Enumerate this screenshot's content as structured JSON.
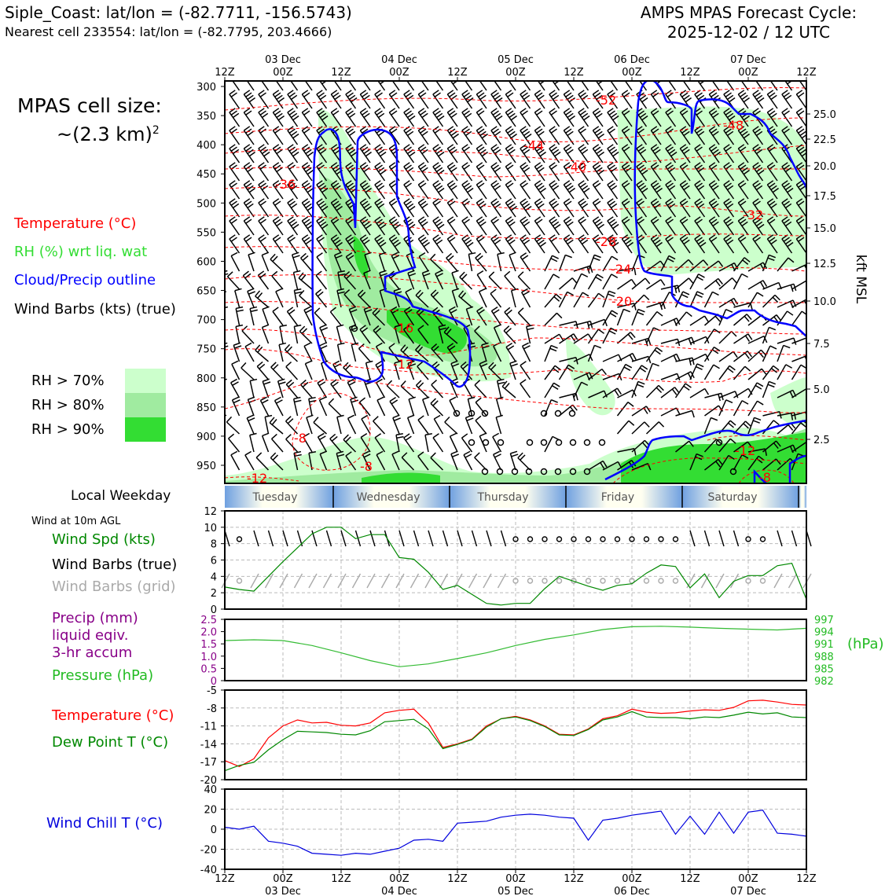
{
  "header": {
    "title_left": "Siple_Coast: lat/lon = (-82.7711, -156.5743)",
    "subtitle_left": "Nearest cell 233554: lat/lon = (-82.7795, 203.4666)",
    "title_right_1": "AMPS MPAS Forecast Cycle:",
    "title_right_2": "2025-12-02 / 12 UTC"
  },
  "cell_size": {
    "line1": "MPAS cell size:",
    "line2": "~(2.3 km)",
    "sup": "2"
  },
  "legend": {
    "temperature": "Temperature (°C)",
    "rh": "RH (%) wrt liq. wat",
    "cloud": "Cloud/Precip outline",
    "wind": "Wind Barbs (kts) (true)",
    "rh70": "RH > 70%",
    "rh80": "RH > 80%",
    "rh90": "RH > 90%",
    "colors": {
      "rh70": "#ccffcc",
      "rh80": "#a0eba0",
      "rh90": "#33dd33",
      "temp": "#ff0000",
      "rh_text": "#33dd33",
      "cloud": "#0000ff"
    }
  },
  "time_axis": {
    "ticks": [
      "12Z",
      "00Z",
      "12Z",
      "00Z",
      "12Z",
      "00Z",
      "12Z",
      "00Z",
      "12Z",
      "00Z",
      "12Z"
    ],
    "dates": [
      "03 Dec",
      "04 Dec",
      "05 Dec",
      "06 Dec",
      "07 Dec"
    ]
  },
  "pressure_axis": {
    "labels": [
      "300",
      "350",
      "400",
      "450",
      "500",
      "550",
      "600",
      "650",
      "700",
      "750",
      "800",
      "850",
      "900",
      "950"
    ]
  },
  "kft_axis": {
    "title": "kft MSL",
    "labels": [
      "25.0",
      "22.5",
      "20.0",
      "17.5",
      "15.0",
      "12.5",
      "10.0",
      "7.5",
      "5.0",
      "2.5"
    ]
  },
  "temp_contours": [
    "-52",
    "-48",
    "-44",
    "-40",
    "-36",
    "-32",
    "-28",
    "-24",
    "-20",
    "-16",
    "-12",
    "-8",
    "-8",
    "-12",
    "-12",
    "-8"
  ],
  "weekday": {
    "label": "Local Weekday",
    "days": [
      "Tuesday",
      "Wednesday",
      "Thursday",
      "Friday",
      "Saturday"
    ]
  },
  "panels": {
    "wind_note": "Wind at 10m AGL",
    "wind_spd": "Wind Spd (kts)",
    "wind_barbs_true": "Wind Barbs (true)",
    "wind_barbs_grid": "Wind Barbs (grid)",
    "precip_1": "Precip (mm)",
    "precip_2": "liquid eqiv.",
    "precip_3": "3-hr accum",
    "pressure": "Pressure (hPa)",
    "pressure_unit": "(hPa)",
    "temperature": "Temperature (°C)",
    "dewpoint": "Dew Point T (°C)",
    "windchill": "Wind Chill T (°C)"
  },
  "chart_data": [
    {
      "type": "line",
      "title": "Wind Spd (kts)",
      "x_hours": [
        0,
        3,
        6,
        9,
        12,
        15,
        18,
        21,
        24,
        27,
        30,
        33,
        36,
        39,
        42,
        45,
        48,
        51,
        54,
        57,
        60,
        63,
        66,
        69,
        72,
        75,
        78,
        81,
        84,
        87,
        90,
        93,
        96,
        99,
        102,
        105,
        108,
        111,
        114,
        117,
        120
      ],
      "y_ticks": [
        "0",
        "2",
        "4",
        "6",
        "8",
        "10",
        "12"
      ],
      "ylim": [
        0,
        12
      ],
      "values": [
        2.7,
        2.4,
        2.2,
        4.0,
        5.8,
        7.5,
        9.2,
        10.0,
        10.0,
        8.6,
        9.1,
        9.1,
        6.3,
        6.1,
        4.5,
        2.4,
        2.9,
        1.8,
        0.7,
        0.5,
        0.7,
        0.7,
        2.5,
        4.0,
        3.4,
        2.8,
        2.3,
        2.9,
        3.1,
        4.4,
        5.4,
        5.2,
        2.6,
        4.3,
        1.4,
        3.4,
        4.1,
        4.1,
        5.3,
        5.6,
        1.2
      ],
      "color": "#008800"
    },
    {
      "type": "line",
      "title": "Pressure (hPa)",
      "x_hours": [
        0,
        6,
        12,
        18,
        24,
        30,
        36,
        42,
        48,
        54,
        60,
        66,
        72,
        78,
        84,
        90,
        96,
        102,
        108,
        114,
        120
      ],
      "y_ticks_left": [
        "2.5",
        "2.0",
        "1.5",
        "1.0",
        "0.5",
        "0"
      ],
      "y_ticks_right": [
        "997",
        "994",
        "991",
        "988",
        "985",
        "982"
      ],
      "ylim": [
        982,
        997
      ],
      "values": [
        991.8,
        992.0,
        991.8,
        990.6,
        988.8,
        986.9,
        985.4,
        986.1,
        987.4,
        988.8,
        990.6,
        992.1,
        993.2,
        994.5,
        995.2,
        995.3,
        995.1,
        994.8,
        994.6,
        994.4,
        994.8
      ],
      "color": "#33bb33"
    },
    {
      "type": "line",
      "title": "Temperature / Dew Point (°C)",
      "x_hours": [
        0,
        3,
        6,
        9,
        12,
        15,
        18,
        21,
        24,
        27,
        30,
        33,
        36,
        39,
        42,
        45,
        48,
        51,
        54,
        57,
        60,
        63,
        66,
        69,
        72,
        75,
        78,
        81,
        84,
        87,
        90,
        93,
        96,
        99,
        102,
        105,
        108,
        111,
        114,
        117,
        120
      ],
      "y_ticks": [
        "-5",
        "-8",
        "-11",
        "-14",
        "-17",
        "-20"
      ],
      "ylim": [
        -20,
        -5
      ],
      "series": [
        {
          "name": "Temperature (°C)",
          "color": "#ff0000",
          "values": [
            -16.8,
            -17.8,
            -16.5,
            -13.0,
            -11.0,
            -10.0,
            -10.5,
            -10.4,
            -10.9,
            -11.0,
            -10.5,
            -8.8,
            -8.4,
            -8.2,
            -10.5,
            -14.6,
            -14.0,
            -13.2,
            -11.0,
            -9.8,
            -9.4,
            -10.0,
            -11.0,
            -12.4,
            -12.5,
            -11.5,
            -9.8,
            -9.3,
            -8.2,
            -8.7,
            -8.9,
            -8.8,
            -8.5,
            -8.3,
            -8.4,
            -7.9,
            -6.8,
            -6.7,
            -7.0,
            -7.4,
            -7.5
          ]
        },
        {
          "name": "Dew Point T (°C)",
          "color": "#008800",
          "values": [
            -18.5,
            -17.6,
            -17.1,
            -15.0,
            -13.3,
            -11.9,
            -12.0,
            -12.1,
            -12.4,
            -12.5,
            -11.8,
            -10.3,
            -10.1,
            -9.9,
            -11.5,
            -14.8,
            -14.1,
            -13.3,
            -11.2,
            -9.8,
            -9.5,
            -10.1,
            -11.1,
            -12.5,
            -12.6,
            -11.6,
            -10.0,
            -9.5,
            -8.6,
            -9.5,
            -9.6,
            -9.6,
            -9.8,
            -9.5,
            -9.6,
            -9.2,
            -8.7,
            -9.0,
            -8.8,
            -9.5,
            -9.6
          ]
        }
      ]
    },
    {
      "type": "line",
      "title": "Wind Chill T (°C)",
      "x_hours": [
        0,
        3,
        6,
        9,
        12,
        15,
        18,
        21,
        24,
        27,
        30,
        33,
        36,
        39,
        42,
        45,
        48,
        51,
        54,
        57,
        60,
        63,
        66,
        69,
        72,
        75,
        78,
        81,
        84,
        87,
        90,
        93,
        96,
        99,
        102,
        105,
        108,
        111,
        114,
        117,
        120
      ],
      "y_ticks": [
        "40",
        "20",
        "0",
        "-20",
        "-40"
      ],
      "ylim": [
        -40,
        40
      ],
      "values": [
        2,
        0,
        3,
        -12,
        -14,
        -17,
        -24,
        -25,
        -26,
        -24,
        -25,
        -22,
        -19,
        -11,
        -10,
        -12,
        6,
        7,
        8,
        12,
        14,
        15,
        14,
        12,
        11,
        -11,
        9,
        11,
        14,
        16,
        18,
        -5,
        13,
        -5,
        17,
        -4,
        17,
        19,
        -4,
        -5,
        -7
      ],
      "color": "#0000dd"
    }
  ]
}
